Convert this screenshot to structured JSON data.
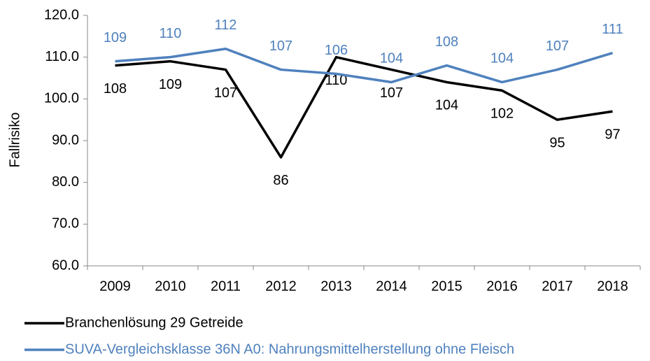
{
  "chart_data": {
    "type": "line",
    "y_label": "Fallrisiko",
    "categories": [
      "2009",
      "2010",
      "2011",
      "2012",
      "2013",
      "2014",
      "2015",
      "2016",
      "2017",
      "2018"
    ],
    "series": [
      {
        "name": "Branchenlösung 29 Getreide",
        "color": "#000000",
        "label_side": "below",
        "values": [
          108,
          109,
          107,
          86,
          110,
          107,
          104,
          102,
          95,
          97
        ]
      },
      {
        "name": "SUVA-Vergleichsklasse 36N A0: Nahrungsmittelherstellung ohne Fleisch",
        "color": "#4f81bd",
        "label_side": "above",
        "values": [
          109,
          110,
          112,
          107,
          106,
          104,
          108,
          104,
          107,
          111
        ]
      }
    ],
    "ylim": [
      60,
      120
    ],
    "yticks": [
      {
        "value": 60,
        "label": "60.0"
      },
      {
        "value": 70,
        "label": "70.0"
      },
      {
        "value": 80,
        "label": "80.0"
      },
      {
        "value": 90,
        "label": "90.0"
      },
      {
        "value": 100,
        "label": "100.0"
      },
      {
        "value": 110,
        "label": "110.0"
      },
      {
        "value": 120,
        "label": "120.0"
      }
    ],
    "grid": false,
    "legend": "bottom"
  }
}
